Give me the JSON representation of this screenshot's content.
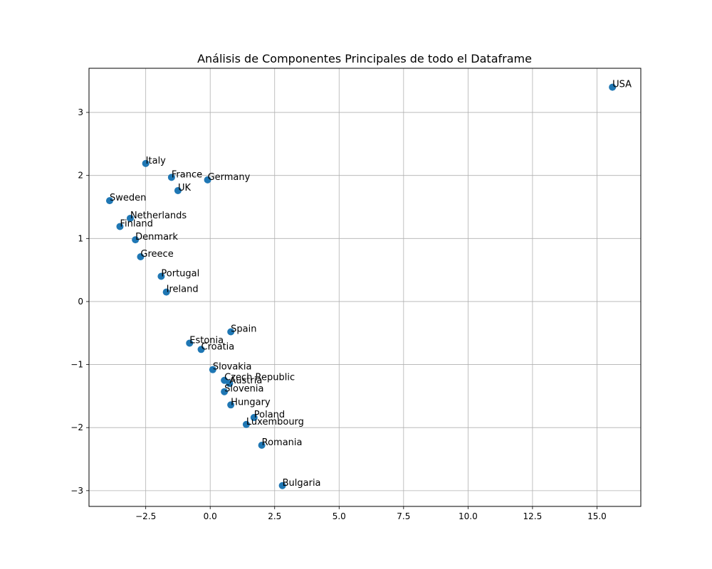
{
  "chart_data": {
    "type": "scatter",
    "title": "Análisis de Componentes Principales de todo el Dataframe",
    "xlabel": "",
    "ylabel": "",
    "xlim": [
      -4.7,
      16.7
    ],
    "ylim": [
      -3.25,
      3.7
    ],
    "xticks": [
      -2.5,
      0.0,
      2.5,
      5.0,
      7.5,
      10.0,
      12.5,
      15.0
    ],
    "xtick_labels": [
      "−2.5",
      "0.0",
      "2.5",
      "5.0",
      "7.5",
      "10.0",
      "12.5",
      "15.0"
    ],
    "yticks": [
      -3,
      -2,
      -1,
      0,
      1,
      2,
      3
    ],
    "ytick_labels": [
      "−3",
      "−2",
      "−1",
      "0",
      "1",
      "2",
      "3"
    ],
    "grid": true,
    "color": "#1f77b4",
    "points": [
      {
        "label": "USA",
        "x": 15.6,
        "y": 3.4
      },
      {
        "label": "Italy",
        "x": -2.5,
        "y": 2.19
      },
      {
        "label": "France",
        "x": -1.5,
        "y": 1.97
      },
      {
        "label": "Germany",
        "x": -0.1,
        "y": 1.93
      },
      {
        "label": "UK",
        "x": -1.25,
        "y": 1.76
      },
      {
        "label": "Sweden",
        "x": -3.9,
        "y": 1.6
      },
      {
        "label": "Netherlands",
        "x": -3.1,
        "y": 1.32
      },
      {
        "label": "Finland",
        "x": -3.5,
        "y": 1.19
      },
      {
        "label": "Denmark",
        "x": -2.9,
        "y": 0.98
      },
      {
        "label": "Greece",
        "x": -2.7,
        "y": 0.71
      },
      {
        "label": "Portugal",
        "x": -1.9,
        "y": 0.4
      },
      {
        "label": "Ireland",
        "x": -1.7,
        "y": 0.15
      },
      {
        "label": "Spain",
        "x": 0.8,
        "y": -0.48
      },
      {
        "label": "Estonia",
        "x": -0.8,
        "y": -0.66
      },
      {
        "label": "Croatia",
        "x": -0.35,
        "y": -0.76
      },
      {
        "label": "Slovakia",
        "x": 0.1,
        "y": -1.08
      },
      {
        "label": "Czech Republic",
        "x": 0.55,
        "y": -1.25
      },
      {
        "label": "Austria",
        "x": 0.75,
        "y": -1.3
      },
      {
        "label": "Slovenia",
        "x": 0.55,
        "y": -1.43
      },
      {
        "label": "Hungary",
        "x": 0.8,
        "y": -1.64
      },
      {
        "label": "Poland",
        "x": 1.7,
        "y": -1.84
      },
      {
        "label": "Luxembourg",
        "x": 1.4,
        "y": -1.95
      },
      {
        "label": "Romania",
        "x": 2.0,
        "y": -2.28
      },
      {
        "label": "Bulgaria",
        "x": 2.8,
        "y": -2.92
      }
    ]
  }
}
